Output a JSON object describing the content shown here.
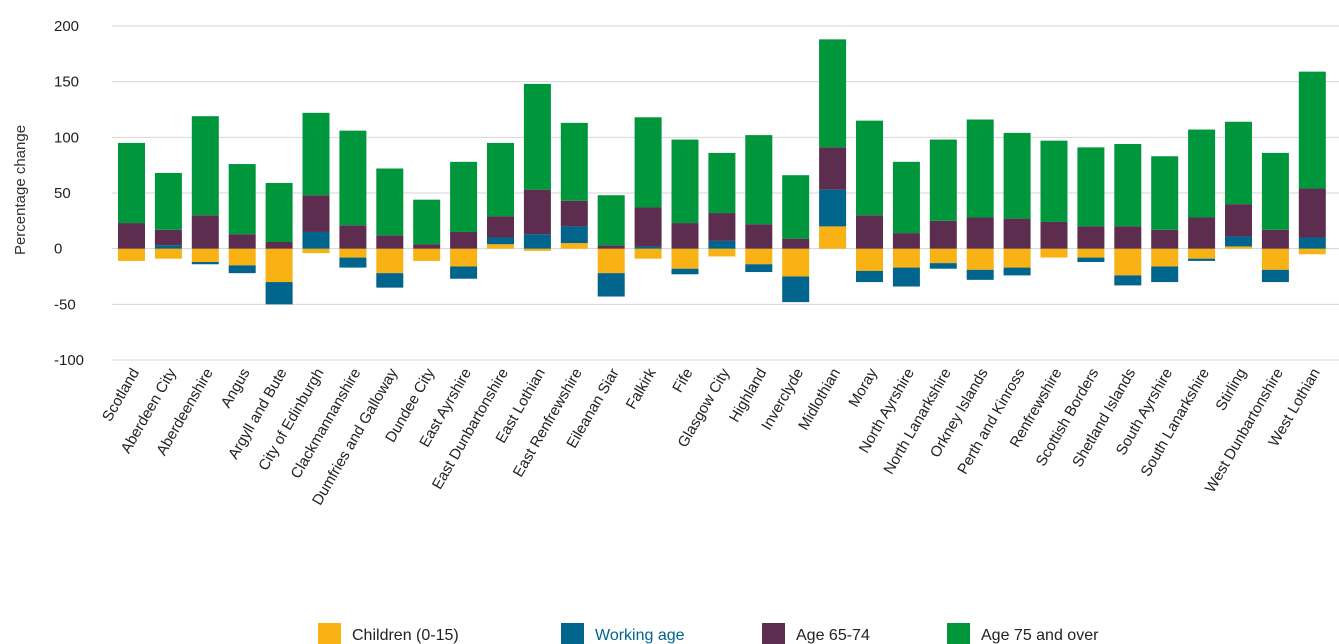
{
  "chart_data": {
    "type": "bar",
    "stacked": true,
    "ylabel": "Percentage change",
    "xlabel": "",
    "ylim": [
      -100,
      200
    ],
    "yticks": [
      -100,
      -50,
      0,
      50,
      100,
      150,
      200
    ],
    "grid": true,
    "legend_position": "bottom",
    "categories": [
      "Scotland",
      "Aberdeen City",
      "Aberdeenshire",
      "Angus",
      "Argyll and Bute",
      "City of Edinburgh",
      "Clackmannanshire",
      "Dumfries and Galloway",
      "Dundee City",
      "East Ayrshire",
      "East Dunbartonshire",
      "East Lothian",
      "East Renfrewshire",
      "Eileanan Siar",
      "Falkirk",
      "Fife",
      "Glasgow City",
      "Highland",
      "Inverclyde",
      "Midlothian",
      "Moray",
      "North Ayrshire",
      "North Lanarkshire",
      "Orkney Islands",
      "Perth and Kinross",
      "Renfrewshire",
      "Scottish Borders",
      "Shetland Islands",
      "South Ayrshire",
      "South Lanarkshire",
      "Stirling",
      "West Dunbartonshire",
      "West Lothian"
    ],
    "series": [
      {
        "name": "Children (0-15)",
        "color": "#f8b214",
        "values": [
          -11,
          -9,
          -12,
          -15,
          -30,
          -4,
          -8,
          -22,
          -11,
          -16,
          4,
          -2,
          5,
          -22,
          -9,
          -18,
          -7,
          -14,
          -25,
          20,
          -20,
          -17,
          -13,
          -19,
          -17,
          -8,
          -8,
          -24,
          -16,
          -9,
          2,
          -19,
          -5
        ]
      },
      {
        "name": "Working age",
        "color": "#00648c",
        "values": [
          0,
          3,
          -2,
          -7,
          -20,
          15,
          -9,
          -13,
          0,
          -11,
          6,
          13,
          15,
          -21,
          2,
          -5,
          7,
          -7,
          -23,
          33,
          -10,
          -17,
          -5,
          -9,
          -7,
          0,
          -4,
          -9,
          -14,
          -2,
          9,
          -11,
          10
        ]
      },
      {
        "name": "Age 65-74",
        "color": "#5c2d4f",
        "values": [
          23,
          14,
          30,
          13,
          6,
          33,
          21,
          12,
          4,
          15,
          19,
          40,
          23,
          3,
          35,
          23,
          25,
          22,
          9,
          38,
          30,
          14,
          25,
          28,
          27,
          24,
          20,
          20,
          17,
          28,
          29,
          17,
          44
        ]
      },
      {
        "name": "Age 75 and over",
        "color": "#00963c",
        "values": [
          72,
          51,
          89,
          63,
          53,
          74,
          85,
          60,
          40,
          63,
          66,
          95,
          70,
          45,
          81,
          75,
          54,
          80,
          57,
          97,
          85,
          64,
          73,
          88,
          77,
          73,
          71,
          74,
          66,
          79,
          74,
          69,
          105
        ]
      }
    ]
  }
}
